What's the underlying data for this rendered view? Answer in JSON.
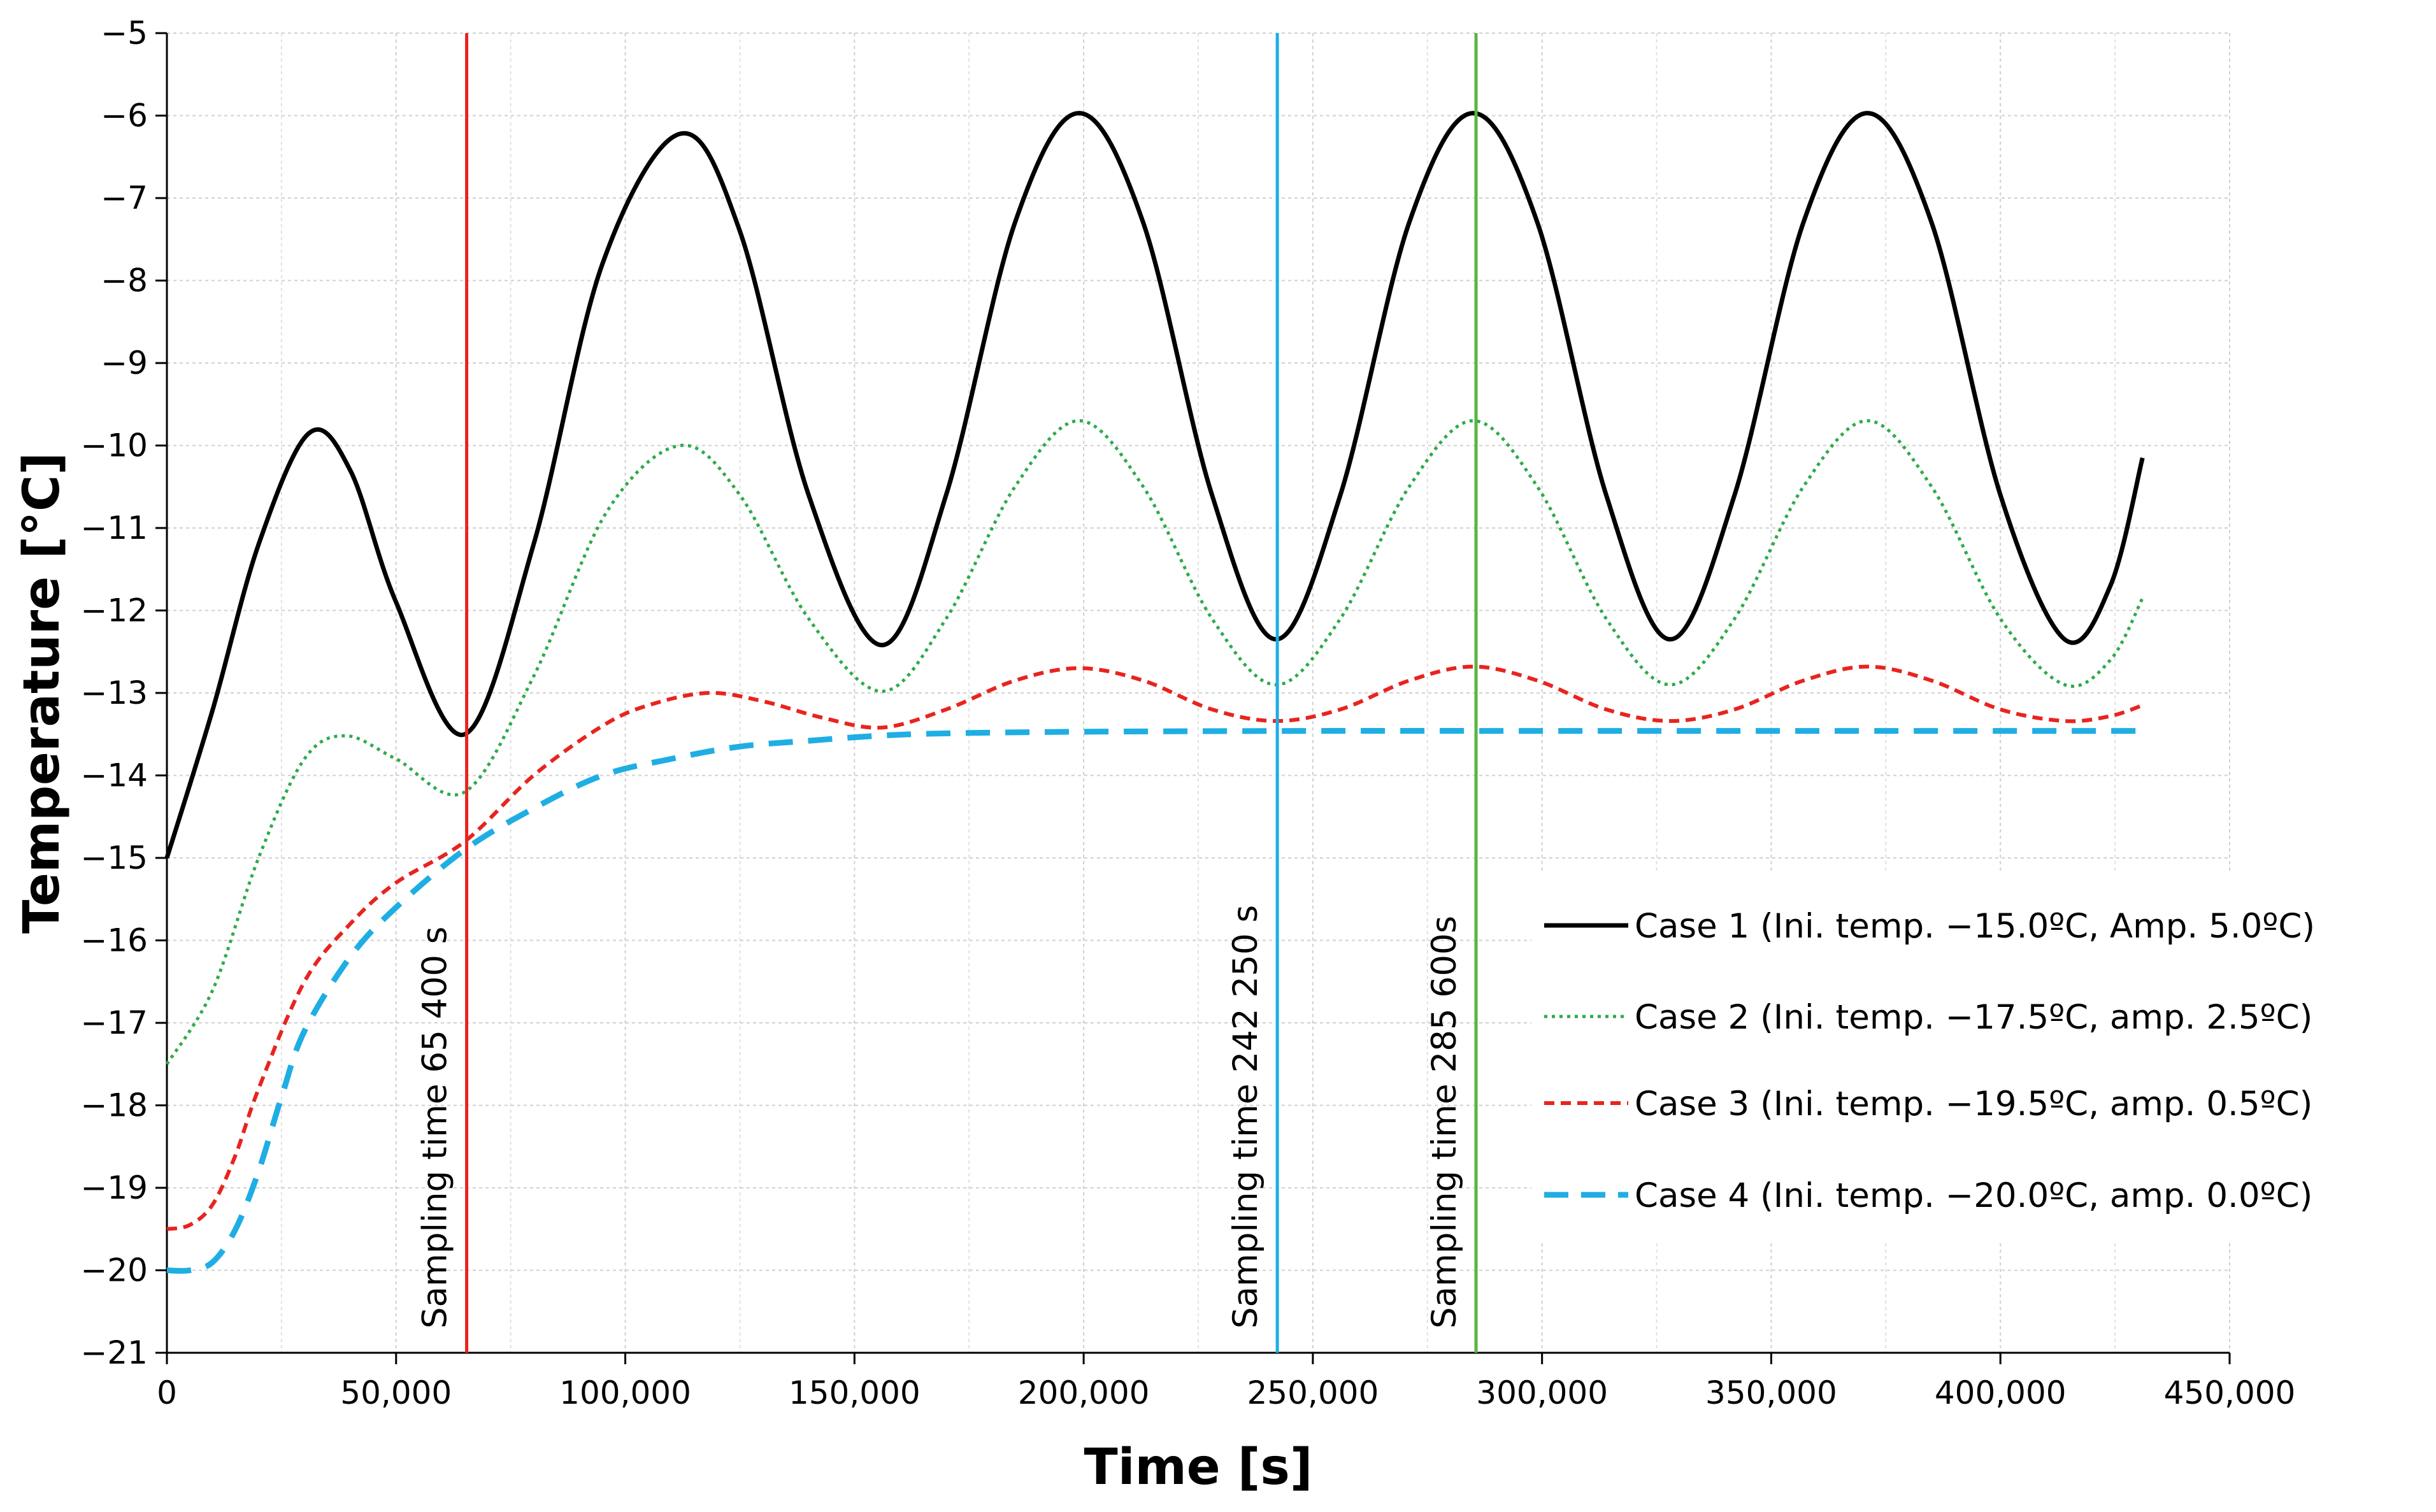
{
  "chart_data": {
    "type": "line",
    "title": "",
    "xlabel": "Time [s]",
    "ylabel": "Temperature [°C]",
    "xlim": [
      0,
      450000
    ],
    "ylim": [
      -21,
      -5
    ],
    "grid": true,
    "x_ticks": [
      0,
      50000,
      100000,
      150000,
      200000,
      250000,
      300000,
      350000,
      400000,
      450000
    ],
    "x_tick_labels": [
      "0",
      "50,000",
      "100,000",
      "150,000",
      "200,000",
      "250,000",
      "300,000",
      "350,000",
      "400,000",
      "450,000"
    ],
    "y_ticks": [
      -5,
      -6,
      -7,
      -8,
      -9,
      -10,
      -11,
      -12,
      -13,
      -14,
      -15,
      -16,
      -17,
      -18,
      -19,
      -20,
      -21
    ],
    "y_tick_labels": [
      "−5",
      "−6",
      "−7",
      "−8",
      "−9",
      "−10",
      "−11",
      "−12",
      "−13",
      "−14",
      "−15",
      "−16",
      "−17",
      "−18",
      "−19",
      "−20",
      "−21"
    ],
    "legend_position": "right",
    "series": [
      {
        "name": "Case 1 (Ini. temp. −15.0ºC, Amp. 5.0ºC)",
        "color": "#000000",
        "style": "solid",
        "points": [
          [
            0,
            -15.0
          ],
          [
            10000,
            -13.2
          ],
          [
            20000,
            -11.2
          ],
          [
            31000,
            -9.85
          ],
          [
            40000,
            -10.3
          ],
          [
            50000,
            -11.9
          ],
          [
            65000,
            -13.5
          ],
          [
            80000,
            -11.2
          ],
          [
            95000,
            -7.8
          ],
          [
            112000,
            -6.22
          ],
          [
            125000,
            -7.4
          ],
          [
            140000,
            -10.6
          ],
          [
            156000,
            -12.42
          ],
          [
            170000,
            -10.6
          ],
          [
            185000,
            -7.3
          ],
          [
            199000,
            -5.97
          ],
          [
            213000,
            -7.3
          ],
          [
            228000,
            -10.6
          ],
          [
            242000,
            -12.35
          ],
          [
            256000,
            -10.6
          ],
          [
            271000,
            -7.3
          ],
          [
            285000,
            -5.97
          ],
          [
            299000,
            -7.3
          ],
          [
            314000,
            -10.6
          ],
          [
            328000,
            -12.35
          ],
          [
            342000,
            -10.6
          ],
          [
            357000,
            -7.3
          ],
          [
            371000,
            -5.97
          ],
          [
            385000,
            -7.3
          ],
          [
            400000,
            -10.6
          ],
          [
            414000,
            -12.35
          ],
          [
            424000,
            -11.7
          ],
          [
            431000,
            -10.15
          ]
        ]
      },
      {
        "name": "Case 2 (Ini. temp. −17.5ºC, amp. 2.5ºC)",
        "color": "#2eab49",
        "style": "dotted",
        "points": [
          [
            0,
            -17.5
          ],
          [
            10000,
            -16.6
          ],
          [
            20000,
            -15.0
          ],
          [
            30000,
            -13.8
          ],
          [
            39000,
            -13.52
          ],
          [
            50000,
            -13.8
          ],
          [
            65000,
            -14.2
          ],
          [
            80000,
            -12.8
          ],
          [
            96000,
            -10.8
          ],
          [
            112000,
            -10.0
          ],
          [
            125000,
            -10.6
          ],
          [
            140000,
            -12.1
          ],
          [
            156000,
            -12.98
          ],
          [
            170000,
            -12.1
          ],
          [
            185000,
            -10.5
          ],
          [
            199000,
            -9.7
          ],
          [
            213000,
            -10.5
          ],
          [
            228000,
            -12.1
          ],
          [
            242000,
            -12.9
          ],
          [
            256000,
            -12.1
          ],
          [
            271000,
            -10.5
          ],
          [
            285000,
            -9.7
          ],
          [
            299000,
            -10.5
          ],
          [
            314000,
            -12.1
          ],
          [
            328000,
            -12.9
          ],
          [
            342000,
            -12.1
          ],
          [
            357000,
            -10.5
          ],
          [
            371000,
            -9.7
          ],
          [
            385000,
            -10.5
          ],
          [
            400000,
            -12.1
          ],
          [
            414000,
            -12.9
          ],
          [
            424000,
            -12.6
          ],
          [
            431000,
            -11.85
          ]
        ]
      },
      {
        "name": "Case 3 (Ini. temp. −19.5ºC, amp. 0.5ºC)",
        "color": "#e8241f",
        "style": "dashed",
        "points": [
          [
            0,
            -19.5
          ],
          [
            5000,
            -19.45
          ],
          [
            10000,
            -19.2
          ],
          [
            15000,
            -18.6
          ],
          [
            20000,
            -17.8
          ],
          [
            30000,
            -16.5
          ],
          [
            40000,
            -15.8
          ],
          [
            50000,
            -15.3
          ],
          [
            65000,
            -14.8
          ],
          [
            80000,
            -14.0
          ],
          [
            95000,
            -13.4
          ],
          [
            105000,
            -13.15
          ],
          [
            118000,
            -13.0
          ],
          [
            130000,
            -13.1
          ],
          [
            143000,
            -13.3
          ],
          [
            156000,
            -13.42
          ],
          [
            170000,
            -13.2
          ],
          [
            185000,
            -12.85
          ],
          [
            199000,
            -12.7
          ],
          [
            213000,
            -12.85
          ],
          [
            228000,
            -13.2
          ],
          [
            242000,
            -13.34
          ],
          [
            256000,
            -13.2
          ],
          [
            271000,
            -12.85
          ],
          [
            285000,
            -12.68
          ],
          [
            299000,
            -12.85
          ],
          [
            314000,
            -13.2
          ],
          [
            328000,
            -13.34
          ],
          [
            342000,
            -13.2
          ],
          [
            357000,
            -12.85
          ],
          [
            371000,
            -12.68
          ],
          [
            385000,
            -12.85
          ],
          [
            400000,
            -13.2
          ],
          [
            414000,
            -13.34
          ],
          [
            424000,
            -13.28
          ],
          [
            431000,
            -13.15
          ]
        ]
      },
      {
        "name": "Case 4 (Ini. temp. −20.0ºC, amp. 0.0ºC)",
        "color": "#1eaee3",
        "style": "long-dash",
        "points": [
          [
            0,
            -20.0
          ],
          [
            5000,
            -20.0
          ],
          [
            10000,
            -19.9
          ],
          [
            15000,
            -19.5
          ],
          [
            20000,
            -18.8
          ],
          [
            25000,
            -17.9
          ],
          [
            30000,
            -17.1
          ],
          [
            40000,
            -16.2
          ],
          [
            50000,
            -15.6
          ],
          [
            65000,
            -14.9
          ],
          [
            80000,
            -14.4
          ],
          [
            95000,
            -14.0
          ],
          [
            110000,
            -13.8
          ],
          [
            125000,
            -13.65
          ],
          [
            140000,
            -13.58
          ],
          [
            155000,
            -13.52
          ],
          [
            170000,
            -13.49
          ],
          [
            200000,
            -13.47
          ],
          [
            250000,
            -13.46
          ],
          [
            300000,
            -13.46
          ],
          [
            350000,
            -13.46
          ],
          [
            400000,
            -13.46
          ],
          [
            431000,
            -13.46
          ]
        ]
      }
    ],
    "vertical_lines": [
      {
        "x": 65400,
        "label": "Sampling time 65 400 s",
        "color": "#e8241f"
      },
      {
        "x": 242250,
        "label": "Sampling time 242 250 s",
        "color": "#1eaee3"
      },
      {
        "x": 285600,
        "label": "Sampling time 285 600s",
        "color": "#58b540"
      }
    ]
  }
}
